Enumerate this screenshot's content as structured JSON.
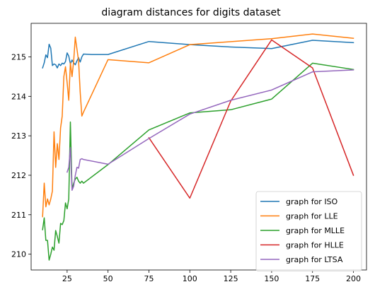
{
  "chart_data": {
    "type": "line",
    "title": "diagram distances for digits dataset",
    "xlabel": "",
    "ylabel": "",
    "xlim": [
      3,
      208
    ],
    "ylim": [
      209.6,
      215.85
    ],
    "xticks": [
      25,
      50,
      75,
      100,
      125,
      150,
      175,
      200
    ],
    "yticks": [
      210,
      211,
      212,
      213,
      214,
      215
    ],
    "grid": false,
    "legend_position": "lower-right",
    "series": [
      {
        "name": "graph for ISO",
        "color": "#1f77b4",
        "x": [
          10,
          11,
          12,
          13,
          14,
          15,
          16,
          17,
          18,
          19,
          20,
          21,
          22,
          23,
          24,
          25,
          26,
          27,
          28,
          29,
          30,
          31,
          32,
          33,
          34,
          35,
          40,
          50,
          75,
          100,
          125,
          150,
          175,
          200
        ],
        "y": [
          214.72,
          214.85,
          215.05,
          214.98,
          215.32,
          215.22,
          214.78,
          214.82,
          214.8,
          214.72,
          214.82,
          214.78,
          214.84,
          214.82,
          214.88,
          215.1,
          215.02,
          214.82,
          214.92,
          214.85,
          214.8,
          214.9,
          214.98,
          214.87,
          215.0,
          215.07,
          215.06,
          215.06,
          215.39,
          215.31,
          215.25,
          215.21,
          215.42,
          215.36
        ]
      },
      {
        "name": "graph for LLE",
        "color": "#ff7f0e",
        "x": [
          10,
          11,
          12,
          13,
          14,
          15,
          16,
          17,
          18,
          19,
          20,
          21,
          22,
          23,
          24,
          25,
          26,
          27,
          28,
          29,
          30,
          31,
          32,
          33,
          34,
          35,
          50,
          75,
          100,
          150,
          175,
          200
        ],
        "y": [
          210.95,
          211.8,
          211.2,
          211.4,
          211.25,
          211.4,
          211.6,
          213.1,
          212.2,
          212.8,
          212.4,
          213.2,
          213.5,
          214.5,
          214.75,
          214.35,
          213.9,
          214.85,
          214.5,
          214.9,
          215.5,
          215.2,
          214.9,
          214.1,
          213.5,
          213.6,
          214.93,
          214.85,
          215.31,
          215.46,
          215.58,
          215.47
        ]
      },
      {
        "name": "graph for MLLE",
        "color": "#2ca02c",
        "x": [
          10,
          11,
          12,
          13,
          14,
          15,
          16,
          17,
          18,
          19,
          20,
          21,
          22,
          23,
          24,
          25,
          26,
          27,
          28,
          29,
          30,
          31,
          32,
          33,
          34,
          35,
          50,
          75,
          100,
          125,
          150,
          175,
          200
        ],
        "y": [
          210.62,
          210.92,
          210.35,
          210.35,
          209.85,
          210.0,
          210.18,
          210.1,
          210.6,
          210.45,
          210.28,
          210.78,
          210.75,
          210.85,
          211.3,
          211.15,
          211.4,
          213.35,
          211.65,
          211.8,
          211.9,
          211.95,
          211.85,
          211.8,
          211.85,
          211.8,
          212.27,
          213.15,
          213.58,
          213.66,
          213.93,
          214.84,
          214.68
        ]
      },
      {
        "name": "graph for HLLE",
        "color": "#d62728",
        "x": [
          75,
          100,
          125,
          150,
          175,
          200
        ],
        "y": [
          212.95,
          211.42,
          213.88,
          215.43,
          214.72,
          212.0
        ]
      },
      {
        "name": "graph for LTSA",
        "color": "#9467bd",
        "x": [
          25,
          26,
          27,
          28,
          29,
          30,
          31,
          32,
          33,
          34,
          35,
          50,
          75,
          100,
          125,
          150,
          175,
          200
        ],
        "y": [
          212.08,
          212.2,
          212.7,
          211.62,
          211.72,
          212.0,
          212.2,
          212.18,
          212.4,
          212.42,
          212.4,
          212.28,
          212.93,
          213.55,
          213.9,
          214.16,
          214.62,
          214.67
        ]
      }
    ]
  }
}
